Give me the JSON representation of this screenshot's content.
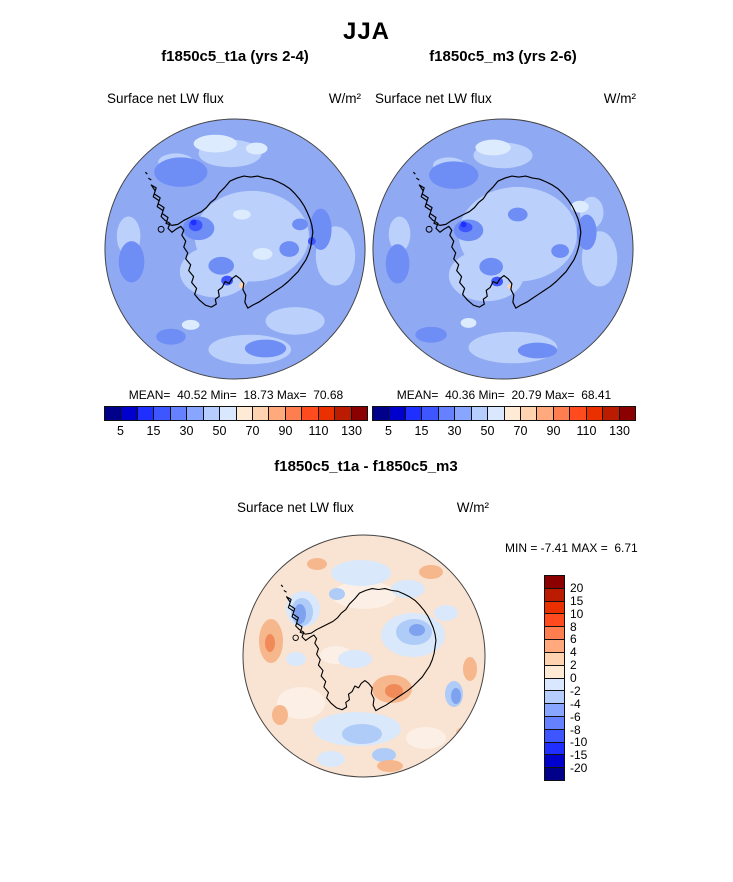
{
  "page_title": "JJA",
  "palette": [
    "#00008B",
    "#0000CC",
    "#1F2FFF",
    "#3D56FF",
    "#6581FF",
    "#88A6FF",
    "#B5CDFF",
    "#DAE8FF",
    "#FFEBD5",
    "#FFD3B0",
    "#FFA97D",
    "#FF7E4F",
    "#FF4B1E",
    "#EB3000",
    "#BB1C00",
    "#8B0000"
  ],
  "panels": [
    {
      "title": "f1850c5_t1a (yrs 2-4)",
      "variable": "Surface net LW flux",
      "units": "W/m²",
      "stats": "MEAN=  40.52 Min=  18.73 Max=  70.68",
      "ticks": [
        "5",
        "15",
        "30",
        "50",
        "70",
        "90",
        "110",
        "130"
      ]
    },
    {
      "title": "f1850c5_m3 (yrs 2-6)",
      "variable": "Surface net LW flux",
      "units": "W/m²",
      "stats": "MEAN=  40.36 Min=  20.79 Max=  68.41",
      "ticks": [
        "5",
        "15",
        "30",
        "50",
        "70",
        "90",
        "110",
        "130"
      ]
    },
    {
      "title": "f1850c5_t1a - f1850c5_m3",
      "variable": "Surface net LW flux",
      "units": "W/m²",
      "stats": "MIN = -7.41 MAX =  6.71",
      "ticks": [
        "20",
        "15",
        "10",
        "8",
        "6",
        "4",
        "2",
        "0",
        "-2",
        "-4",
        "-6",
        "-8",
        "-10",
        "-15",
        "-20"
      ]
    }
  ],
  "chart_data": [
    {
      "type": "heatmap",
      "projection": "south-polar-stereographic",
      "region": "Antarctica",
      "season": "JJA",
      "title": "f1850c5_t1a (yrs 2-4)",
      "variable": "Surface net LW flux",
      "units": "W/m2",
      "mean": 40.52,
      "min": 18.73,
      "max": 70.68,
      "contour_levels": [
        5,
        10,
        15,
        20,
        30,
        40,
        50,
        60,
        70,
        80,
        90,
        100,
        110,
        120,
        130
      ],
      "labeled_ticks": [
        5,
        15,
        30,
        50,
        70,
        90,
        110,
        130
      ],
      "colormap": "blue-to-red 16-step diverging",
      "legend_position": "bottom"
    },
    {
      "type": "heatmap",
      "projection": "south-polar-stereographic",
      "region": "Antarctica",
      "season": "JJA",
      "title": "f1850c5_m3 (yrs 2-6)",
      "variable": "Surface net LW flux",
      "units": "W/m2",
      "mean": 40.36,
      "min": 20.79,
      "max": 68.41,
      "contour_levels": [
        5,
        10,
        15,
        20,
        30,
        40,
        50,
        60,
        70,
        80,
        90,
        100,
        110,
        120,
        130
      ],
      "labeled_ticks": [
        5,
        15,
        30,
        50,
        70,
        90,
        110,
        130
      ],
      "colormap": "blue-to-red 16-step diverging",
      "legend_position": "bottom"
    },
    {
      "type": "heatmap",
      "projection": "south-polar-stereographic",
      "region": "Antarctica",
      "season": "JJA",
      "title": "f1850c5_t1a - f1850c5_m3",
      "variable": "Surface net LW flux difference",
      "units": "W/m2",
      "min": -7.41,
      "max": 6.71,
      "contour_levels": [
        -20,
        -15,
        -10,
        -8,
        -6,
        -4,
        -2,
        0,
        2,
        4,
        6,
        8,
        10,
        15,
        20
      ],
      "colormap": "blue-to-red 16-step diverging",
      "legend_position": "right"
    }
  ]
}
